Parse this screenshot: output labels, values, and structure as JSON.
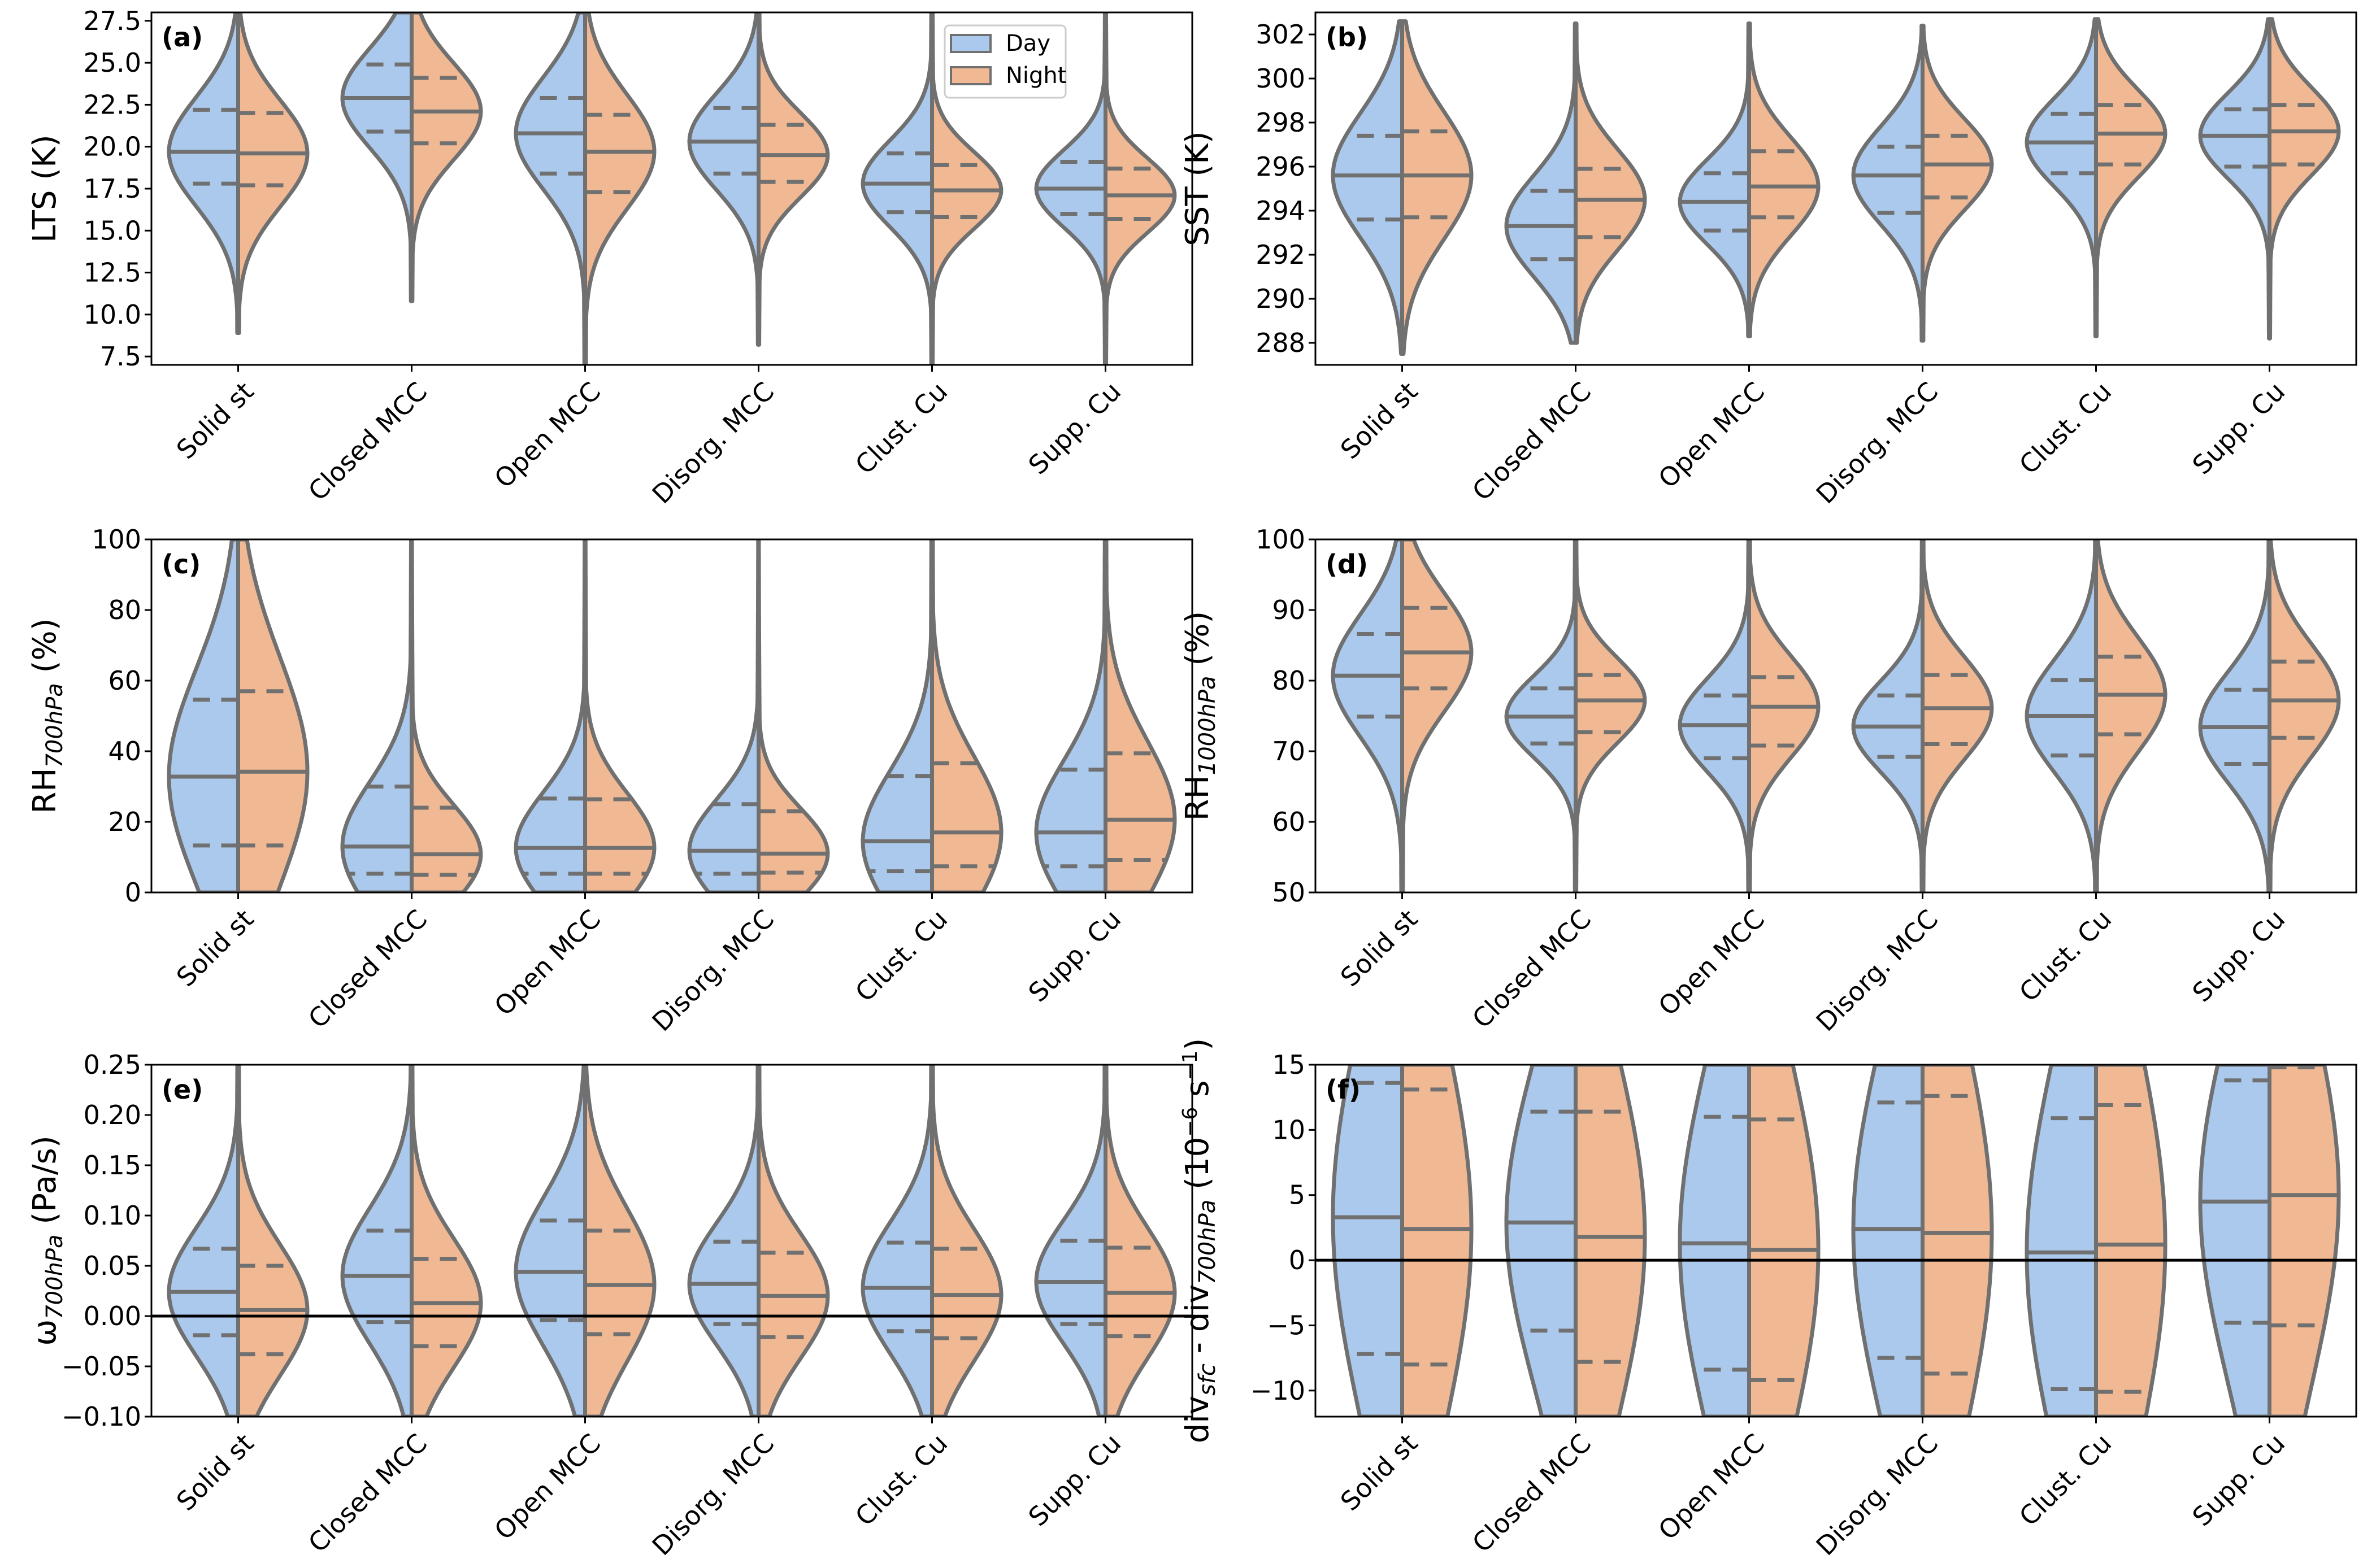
{
  "figure": {
    "legend": {
      "location": "upper-right of panel (a)",
      "entries": [
        {
          "label": "Day",
          "color": "#abc9ec"
        },
        {
          "label": "Night",
          "color": "#f1b993"
        }
      ]
    },
    "outline_color": "#707070",
    "zero_line_color": "#000000"
  },
  "chart_data": [
    {
      "panel": "(a)",
      "type": "violin",
      "ylabel": "LTS (K)",
      "ylim": [
        7.0,
        28.0
      ],
      "yticks": [
        "7.5",
        "10.0",
        "12.5",
        "15.0",
        "17.5",
        "20.0",
        "22.5",
        "25.0",
        "27.5"
      ],
      "ytick_values": [
        7.5,
        10.0,
        12.5,
        15.0,
        17.5,
        20.0,
        22.5,
        25.0,
        27.5
      ],
      "zero_line": false,
      "categories": [
        "Solid st",
        "Closed MCC",
        "Open MCC",
        "Disorg. MCC",
        "Clust. Cu",
        "Supp. Cu"
      ],
      "series": [
        {
          "name": "Day",
          "q1": [
            17.8,
            20.9,
            18.4,
            18.4,
            16.1,
            16.0
          ],
          "median": [
            19.7,
            22.9,
            20.8,
            20.3,
            17.8,
            17.5
          ],
          "q3": [
            22.2,
            24.9,
            22.9,
            22.3,
            19.6,
            19.1
          ],
          "min": [
            8.9,
            10.8,
            7.0,
            8.2,
            7.0,
            7.0
          ],
          "max": [
            28.0,
            28.0,
            28.0,
            28.0,
            28.0,
            28.0
          ],
          "peak": 19.2,
          "width": [
            0.78,
            0.75,
            0.8,
            0.78,
            0.82,
            0.78
          ]
        },
        {
          "name": "Night",
          "q1": [
            17.7,
            20.2,
            17.3,
            17.9,
            15.8,
            15.7
          ],
          "median": [
            19.6,
            22.1,
            19.7,
            19.5,
            17.4,
            17.1
          ],
          "q3": [
            22.0,
            24.1,
            21.9,
            21.3,
            18.9,
            18.7
          ],
          "min": [
            8.9,
            10.8,
            7.0,
            8.2,
            7.0,
            7.0
          ],
          "max": [
            28.0,
            28.0,
            28.0,
            28.0,
            28.0,
            28.0
          ],
          "peak": 18.9,
          "width": [
            0.8,
            0.76,
            0.82,
            0.8,
            0.83,
            0.8
          ]
        }
      ]
    },
    {
      "panel": "(b)",
      "type": "violin",
      "ylabel": "SST (K)",
      "ylim": [
        287.0,
        303.0
      ],
      "yticks": [
        "288",
        "290",
        "292",
        "294",
        "296",
        "298",
        "300",
        "302"
      ],
      "ytick_values": [
        288,
        290,
        292,
        294,
        296,
        298,
        300,
        302
      ],
      "zero_line": false,
      "categories": [
        "Solid st",
        "Closed MCC",
        "Open MCC",
        "Disorg. MCC",
        "Clust. Cu",
        "Supp. Cu"
      ],
      "series": [
        {
          "name": "Day",
          "q1": [
            293.6,
            291.8,
            293.1,
            293.9,
            295.7,
            296.0
          ],
          "median": [
            295.6,
            293.3,
            294.4,
            295.6,
            297.1,
            297.4
          ],
          "q3": [
            297.4,
            294.9,
            295.7,
            296.9,
            298.4,
            298.6
          ],
          "min": [
            287.5,
            288.0,
            288.3,
            288.1,
            288.3,
            288.2
          ],
          "max": [
            302.6,
            302.5,
            302.5,
            302.4,
            302.7,
            302.7
          ]
        },
        {
          "name": "Night",
          "q1": [
            293.7,
            292.8,
            293.7,
            294.6,
            296.1,
            296.1
          ],
          "median": [
            295.6,
            294.5,
            295.1,
            296.1,
            297.5,
            297.6
          ],
          "q3": [
            297.6,
            295.9,
            296.7,
            297.4,
            298.8,
            298.8
          ],
          "min": [
            287.5,
            288.0,
            288.3,
            288.1,
            288.3,
            288.2
          ],
          "max": [
            302.6,
            302.5,
            302.5,
            302.4,
            302.7,
            302.7
          ]
        }
      ]
    },
    {
      "panel": "(c)",
      "type": "violin",
      "ylabel": "RH700hPa (%)",
      "ylabel_main": "RH",
      "ylabel_sub": "700hPa",
      "ylabel_unit": " (%)",
      "ylim": [
        0,
        100
      ],
      "yticks": [
        "0",
        "20",
        "40",
        "60",
        "80",
        "100"
      ],
      "ytick_values": [
        0,
        20,
        40,
        60,
        80,
        100
      ],
      "zero_line": false,
      "categories": [
        "Solid st",
        "Closed MCC",
        "Open MCC",
        "Disorg. MCC",
        "Clust. Cu",
        "Supp. Cu"
      ],
      "series": [
        {
          "name": "Day",
          "q1": [
            13.3,
            5.3,
            5.3,
            5.3,
            6.0,
            7.4
          ],
          "median": [
            32.8,
            13.0,
            12.6,
            11.8,
            14.5,
            17.0
          ],
          "q3": [
            54.6,
            30.0,
            26.6,
            25.0,
            33.0,
            34.8
          ],
          "min": [
            0,
            0,
            0,
            0,
            0,
            0
          ],
          "max": [
            100,
            100,
            100,
            100,
            100,
            100
          ]
        },
        {
          "name": "Night",
          "q1": [
            13.3,
            5.0,
            5.3,
            5.6,
            7.4,
            9.2
          ],
          "median": [
            34.2,
            10.8,
            12.6,
            11.0,
            17.0,
            20.6
          ],
          "q3": [
            57.0,
            24.0,
            26.4,
            23.0,
            36.6,
            39.4
          ],
          "min": [
            0,
            0,
            0,
            0,
            0,
            0
          ],
          "max": [
            100,
            100,
            100,
            100,
            100,
            100
          ]
        }
      ]
    },
    {
      "panel": "(d)",
      "type": "violin",
      "ylabel": "RH1000hPa (%)",
      "ylabel_main": "RH",
      "ylabel_sub": "1000hPa",
      "ylabel_unit": " (%)",
      "ylim": [
        50,
        100
      ],
      "yticks": [
        "50",
        "60",
        "70",
        "80",
        "90",
        "100"
      ],
      "ytick_values": [
        50,
        60,
        70,
        80,
        90,
        100
      ],
      "zero_line": false,
      "categories": [
        "Solid st",
        "Closed MCC",
        "Open MCC",
        "Disorg. MCC",
        "Clust. Cu",
        "Supp. Cu"
      ],
      "series": [
        {
          "name": "Day",
          "q1": [
            74.9,
            71.1,
            69.0,
            69.2,
            69.4,
            68.2
          ],
          "median": [
            80.7,
            74.9,
            73.7,
            73.5,
            75.0,
            73.4
          ],
          "q3": [
            86.6,
            78.9,
            77.9,
            77.9,
            80.1,
            78.7
          ],
          "min": [
            50,
            50,
            50,
            50,
            50,
            50
          ],
          "max": [
            100,
            100,
            100,
            100,
            100,
            100
          ]
        },
        {
          "name": "Night",
          "q1": [
            78.9,
            72.7,
            70.8,
            71.0,
            72.4,
            71.9
          ],
          "median": [
            84.0,
            77.2,
            76.3,
            76.1,
            78.0,
            77.2
          ],
          "q3": [
            90.3,
            80.8,
            80.5,
            80.8,
            83.4,
            82.7
          ],
          "min": [
            50,
            50,
            50,
            50,
            50,
            50
          ],
          "max": [
            100,
            100,
            100,
            100,
            100,
            100
          ]
        }
      ]
    },
    {
      "panel": "(e)",
      "type": "violin",
      "ylabel": "ω700hPa (Pa/s)",
      "ylabel_main": "ω",
      "ylabel_sub": "700hPa",
      "ylabel_unit": " (Pa/s)",
      "ylim": [
        -0.1,
        0.25
      ],
      "yticks": [
        "−0.10",
        "−0.05",
        "0.00",
        "0.05",
        "0.10",
        "0.15",
        "0.20",
        "0.25"
      ],
      "ytick_values": [
        -0.1,
        -0.05,
        0.0,
        0.05,
        0.1,
        0.15,
        0.2,
        0.25
      ],
      "zero_line": true,
      "categories": [
        "Solid st",
        "Closed MCC",
        "Open MCC",
        "Disorg. MCC",
        "Clust. Cu",
        "Supp. Cu"
      ],
      "series": [
        {
          "name": "Day",
          "q1": [
            -0.019,
            -0.006,
            -0.004,
            -0.008,
            -0.015,
            -0.008
          ],
          "median": [
            0.024,
            0.04,
            0.044,
            0.032,
            0.028,
            0.034
          ],
          "q3": [
            0.067,
            0.085,
            0.095,
            0.074,
            0.073,
            0.075
          ],
          "min": [
            -0.1,
            -0.1,
            -0.1,
            -0.1,
            -0.1,
            -0.1
          ],
          "max": [
            0.25,
            0.25,
            0.25,
            0.25,
            0.25,
            0.25
          ]
        },
        {
          "name": "Night",
          "q1": [
            -0.038,
            -0.03,
            -0.018,
            -0.021,
            -0.022,
            -0.02
          ],
          "median": [
            0.006,
            0.013,
            0.031,
            0.02,
            0.021,
            0.023
          ],
          "q3": [
            0.05,
            0.057,
            0.085,
            0.063,
            0.067,
            0.068
          ],
          "min": [
            -0.1,
            -0.1,
            -0.1,
            -0.1,
            -0.1,
            -0.1
          ],
          "max": [
            0.25,
            0.25,
            0.25,
            0.25,
            0.25,
            0.25
          ]
        }
      ]
    },
    {
      "panel": "(f)",
      "type": "violin",
      "ylabel": "divsfc - div700hPa (10^-6 s^-1)",
      "ylabel_main": "div",
      "ylabel_sub1": "sfc",
      "ylabel_mid": " - div",
      "ylabel_sub2": "700hPa",
      "ylabel_unit_pre": " (10",
      "ylabel_sup": "−6",
      "ylabel_unit_mid": " s",
      "ylabel_sup2": "−1",
      "ylabel_unit_post": ")",
      "ylim": [
        -12,
        15
      ],
      "yticks": [
        "−10",
        "−5",
        "0",
        "5",
        "10",
        "15"
      ],
      "ytick_values": [
        -10,
        -5,
        0,
        5,
        10,
        15
      ],
      "zero_line": true,
      "categories": [
        "Solid st",
        "Closed MCC",
        "Open MCC",
        "Disorg. MCC",
        "Clust. Cu",
        "Supp. Cu"
      ],
      "series": [
        {
          "name": "Day",
          "q1": [
            -7.2,
            -5.4,
            -8.4,
            -7.5,
            -9.9,
            -4.8
          ],
          "median": [
            3.3,
            2.9,
            1.3,
            2.4,
            0.6,
            4.5
          ],
          "q3": [
            13.6,
            11.4,
            11.0,
            12.1,
            10.9,
            13.8
          ],
          "min": [
            -12,
            -12,
            -12,
            -12,
            -12,
            -12
          ],
          "max": [
            15,
            15,
            15,
            15,
            15,
            15
          ]
        },
        {
          "name": "Night",
          "q1": [
            -8.0,
            -7.8,
            -9.2,
            -8.7,
            -10.1,
            -5.0
          ],
          "median": [
            2.4,
            1.8,
            0.8,
            2.1,
            1.2,
            5.0
          ],
          "q3": [
            13.1,
            11.4,
            10.8,
            12.6,
            11.9,
            14.8
          ],
          "min": [
            -12,
            -12,
            -12,
            -12,
            -12,
            -12
          ],
          "max": [
            15,
            15,
            15,
            15,
            15,
            15
          ]
        }
      ]
    }
  ]
}
